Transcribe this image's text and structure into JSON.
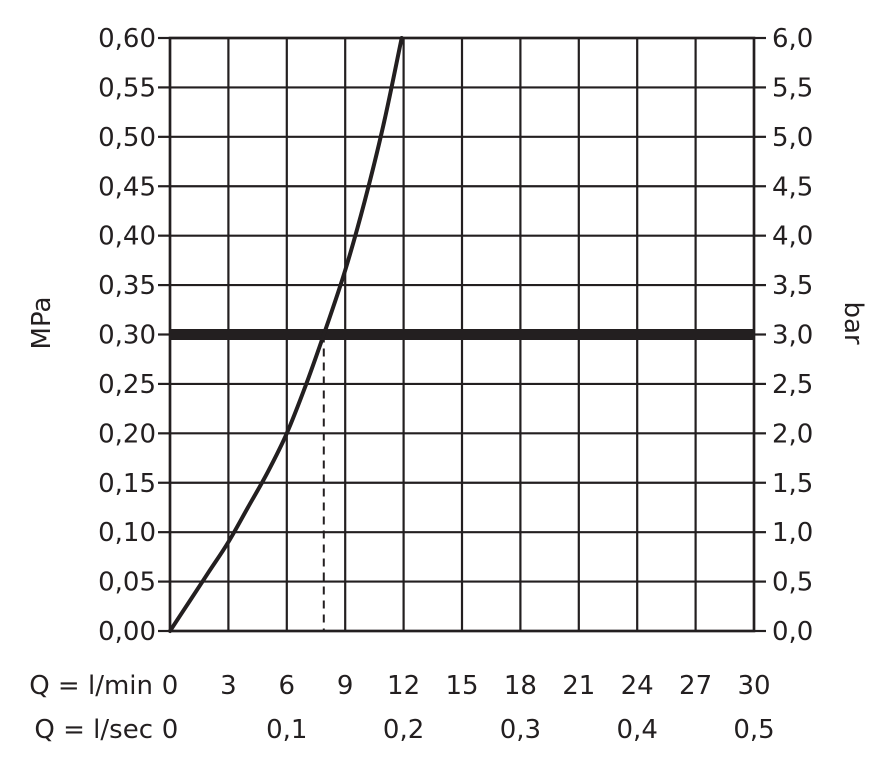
{
  "chart_data": {
    "type": "line",
    "left_axis": {
      "label": "MPa",
      "range": [
        0,
        0.6
      ],
      "ticks": [
        0,
        0.05,
        0.1,
        0.15,
        0.2,
        0.25,
        0.3,
        0.35,
        0.4,
        0.45,
        0.5,
        0.55,
        0.6
      ],
      "tick_labels": [
        "0,00",
        "0,05",
        "0,10",
        "0,15",
        "0,20",
        "0,25",
        "0,30",
        "0,35",
        "0,40",
        "0,45",
        "0,50",
        "0,55",
        "0,60"
      ]
    },
    "right_axis": {
      "label": "bar",
      "range": [
        0,
        6
      ],
      "ticks": [
        0,
        0.5,
        1,
        1.5,
        2,
        2.5,
        3,
        3.5,
        4,
        4.5,
        5,
        5.5,
        6
      ],
      "tick_labels": [
        "0,0",
        "0,5",
        "1,0",
        "1,5",
        "2,0",
        "2,5",
        "3,0",
        "3,5",
        "4,0",
        "4,5",
        "5,0",
        "5,5",
        "6,0"
      ]
    },
    "x_axis_lmin": {
      "label": "Q = l/min",
      "range": [
        0,
        30
      ],
      "ticks": [
        0,
        3,
        6,
        9,
        12,
        15,
        18,
        21,
        24,
        27,
        30
      ],
      "tick_labels": [
        "0",
        "3",
        "6",
        "9",
        "12",
        "15",
        "18",
        "21",
        "24",
        "27",
        "30"
      ]
    },
    "x_axis_lsec": {
      "label": "Q = l/sec",
      "ticks": [
        0,
        0.1,
        0.2,
        0.3,
        0.4,
        0.5
      ],
      "tick_labels": [
        "0",
        "0,1",
        "0,2",
        "0,3",
        "0,4",
        "0,5"
      ]
    },
    "grid": true,
    "series": [
      {
        "x": [
          0,
          1,
          2,
          3,
          4,
          5,
          6,
          7,
          7.9,
          9,
          10,
          11,
          11.9
        ],
        "y": [
          0,
          0.03,
          0.06,
          0.09,
          0.125,
          0.16,
          0.2,
          0.25,
          0.3,
          0.365,
          0.435,
          0.515,
          0.6
        ]
      }
    ],
    "reference_line": {
      "y": 0.3
    },
    "dashed_drop": {
      "x": 7.9,
      "y_from": 0,
      "y_to": 0.3
    }
  },
  "colors": {
    "ink": "#231f20",
    "grid": "#231f20",
    "background": "#ffffff"
  }
}
